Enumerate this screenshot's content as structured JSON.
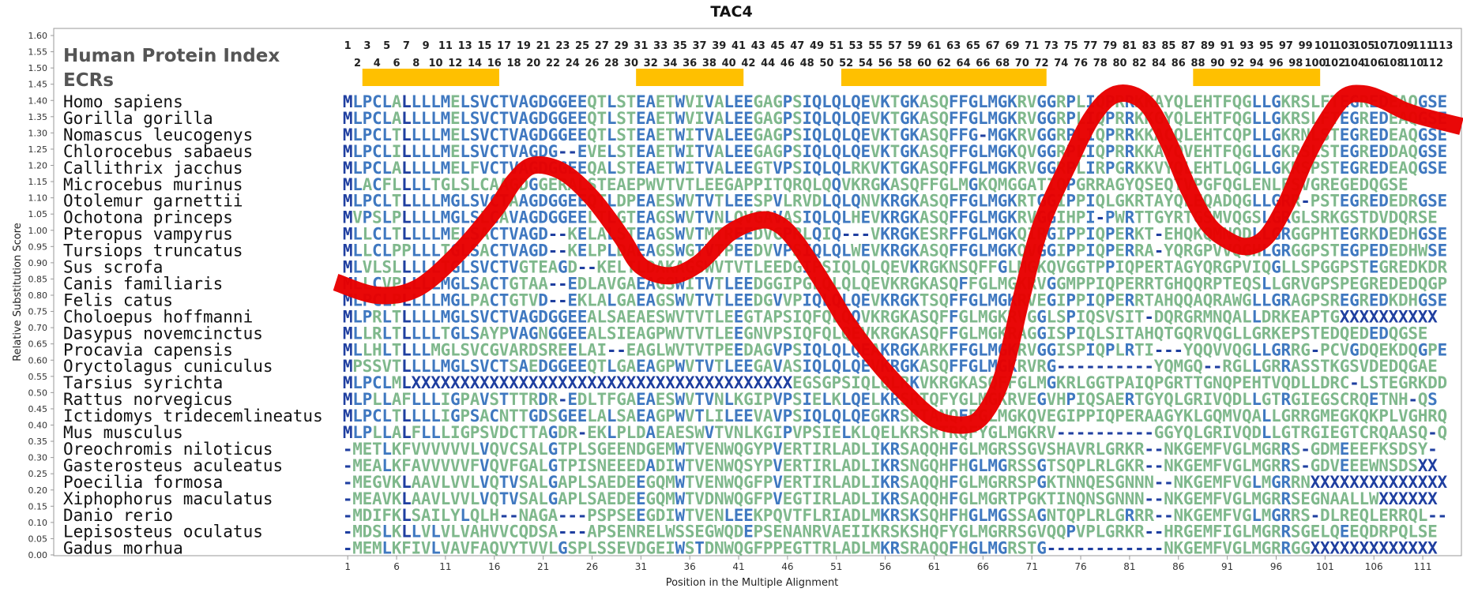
{
  "chart_data": {
    "type": "multiple-sequence-alignment",
    "title": "TAC4",
    "xlabel": "Position in the Multiple Alignment",
    "ylabel": "Relative Substitution Score",
    "ylim": [
      0,
      1.6
    ],
    "yticks": [
      "0.00",
      "0.05",
      "0.10",
      "0.15",
      "0.20",
      "0.25",
      "0.30",
      "0.35",
      "0.40",
      "0.45",
      "0.50",
      "0.55",
      "0.60",
      "0.65",
      "0.70",
      "0.75",
      "0.80",
      "0.85",
      "0.90",
      "0.95",
      "1.00",
      "1.05",
      "1.10",
      "1.15",
      "1.20",
      "1.25",
      "1.30",
      "1.35",
      "1.40",
      "1.45",
      "1.50",
      "1.55",
      "1.60"
    ],
    "xticks": [
      1,
      6,
      11,
      16,
      21,
      26,
      31,
      36,
      41,
      46,
      51,
      56,
      61,
      66,
      71,
      76,
      81,
      86,
      91,
      96,
      101,
      106,
      111
    ],
    "alignment_length": 113,
    "header_labels": {
      "human_index": "Human Protein Index",
      "ecrs": "ECRs"
    },
    "human_index_odd": [
      1,
      3,
      5,
      7,
      9,
      11,
      13,
      15,
      17,
      19,
      21,
      23,
      25,
      27,
      29,
      31,
      33,
      35,
      37,
      39,
      41,
      43,
      45,
      47,
      49,
      51,
      53,
      55,
      57,
      59,
      61,
      63,
      65,
      67,
      69,
      71,
      73,
      75,
      77,
      79,
      81,
      83,
      85,
      87,
      89,
      91,
      93,
      95,
      97,
      99,
      101,
      103,
      105,
      107,
      109,
      111,
      113
    ],
    "human_index_even": [
      2,
      4,
      6,
      8,
      10,
      12,
      14,
      16,
      18,
      20,
      22,
      24,
      26,
      28,
      30,
      32,
      34,
      36,
      38,
      40,
      42,
      44,
      46,
      48,
      50,
      52,
      54,
      56,
      58,
      60,
      62,
      64,
      66,
      68,
      70,
      72,
      74,
      76,
      78,
      80,
      82,
      84,
      86,
      88,
      90,
      92,
      94,
      96,
      98,
      100,
      102,
      104,
      106,
      108,
      110,
      112
    ],
    "ecrs": [
      [
        3,
        16
      ],
      [
        31,
        41
      ],
      [
        52,
        72
      ],
      [
        88,
        100
      ]
    ],
    "ecr_color": "#FFC000",
    "curve_color": "#E80000",
    "residue_colors": {
      "conserved": "#1F3FA0",
      "moderate": "#3F78C0",
      "variable": "#7FB88C"
    },
    "rows": [
      {
        "species": "Homo sapiens",
        "seq": "MLPCLALLLLMELSVCTVAGDGGEEQTLSTEAETWVIVALEEGAGPSIQLQLQEVKTGKASQFFGLMGKRVGGRPLIQPRRKKAYQLEHTFQGLLGKRSLFTEGREDEAQGSE"
      },
      {
        "species": "Gorilla gorilla",
        "seq": "MLPCLALLLLMELSVCTVAGDGGEEQTLSTEAETWVIVALEEGAGPSIQLQLQEVKTGKASQFFGLMGKRVGGRPLIQPRRKKGYQLEHTFQGLLGKRSLFTEGREDEAQGSE"
      },
      {
        "species": "Nomascus leucogenys",
        "seq": "MLPCLTLLLLMELSVCTVAGDGGEEQTLSTEAETWITVALEEGAGPSIQLQLQEVKTGKASQFFG-MGKRVGGRPLIQPRRKKACQLEHTCQPLLGKRNLSTEGREDEAQGSE"
      },
      {
        "species": "Chlorocebus sabaeus",
        "seq": "MLPCLILLLLMELSVCTVAGDG--EVELSTEAETWITVALEEGAGPSIQLQLQEVKTGKASQFFGLMGKQVGGRPLIQPRRKKAYQVEHTFQGLLGKRSLSTEGREDDAQGSE"
      },
      {
        "species": "Callithrix jacchus",
        "seq": "MLPCLALLLLMELFVCTVAGDGGEEQALSTEAETWITVALEEGTVPSIQLQLRKVKTGKASQFFGLMGKRVGGRPLIRPGRKKVYQLEHTLQGLLGKRSPSTEGREDEAQGSE"
      },
      {
        "species": "Microcebus murinus",
        "seq": "MLACFLLLLTGLSLCAAGDGGERALSTEAEPWVTVTLEEGAPPITQRQLQQVKRGKASQFFGLMGKQMGGATIQPGRRAGYQSEQTVPGFQGLENLFSVGREGEDQGSE"
      },
      {
        "species": "Otolemur garnettii",
        "seq": "MLPCLTLLLLMGLSVCTAAGDGGEEQTLDPEAESWVTVTLEESPVLRVDLQLQNVKRGKASQFFGLMGKRTGGIPPIQLGKRTAYQLEQADQGLLGRR-PSTEGREDEDRGSE"
      },
      {
        "species": "Ochotona princeps",
        "seq": "MVPSLPLLLLMGLSLCAVAGDGGEELTLGTEAGSWVTVNLQVGAVASIQLQLHEVKRGKASQFFGLMGKRVGGIHPI-PWRTTGYRTGSMVQGSLGRGLSRKGSTDVDQRSE"
      },
      {
        "species": "Pteropus vampyrus",
        "seq": "MLLCLTLLLLMELSACTVAGD--KELALSTEAGSWVTMTREEDVGPRLQIQ---VKRGKESRFFGLMGKQIRGIPPIQPERKT-EHQKQMNQDLLGRGGPHTEGRKDEDHGSE"
      },
      {
        "species": "Tursiops truncatus",
        "seq": "MLLCLPPLLLTGLSACTVAGD--KELPLDAEAGSWGTVTPEEDVVPSIQLQLWEVKRGKASQFFGLMGKQVGGIPPIQPERRA-YQRGPVVQGHLGRGGPSTEGPEDEDHWSE"
      },
      {
        "species": "Sus scrofa",
        "seq": "MLVLSLLLLLTGLSVCTVGTEAGD--KELTLDAKAGSWVTVTLEEDGIPSIQLQLQEVKRGKNSQFFGLMGKQVGGTPPIQPERTAGYQRGPVIQGLLSPGGPSTEGREDKDRGSE"
      },
      {
        "species": "Canis familiaris",
        "seq": "MLLCVPLLLLMGLSACTGTAA--EDLAVGAEAGSWITVTLEEDGGIPGLQLQLQEVKRGKASQFFGLMGKRVGGMPPIQPERRTGHQQRPTEQSLLGRVGPSPEGREDEDQGPE"
      },
      {
        "species": "Felis catus",
        "seq": "MLPCLPLLLLMGLPACTGTVD--EKLALGAEAGSWVTVTLEEDGVVPIQLQLQEVKRGKTSQFFGLMGKRVEGIPPIQPERRTAHQQAQRAWGLLGRAGPSREGREDKDHGSE"
      },
      {
        "species": "Choloepus hoffmanni",
        "seq": "MLPRLTLLLLMGLSVCTVAGDGGEEALSAEAESWVTVTLEEGTAPSIQFQLQQVKRGKASQFFGLMGKRVGGLSPIQSVSIT-DQRGRMNQALLDRKEAPTGXXXXXXXXXX"
      },
      {
        "species": "Dasypus novemcinctus",
        "seq": "MLLRLTLLLLTGLSAYPVAGNGGEEALSIEAGPWVTVTLEEGNVPSIQFQLQEVKRGKASQFFGLMGKRAGGISPIQLSITAHQTGQRVQGLLGRKEPSTEDQEDEDQGSE"
      },
      {
        "species": "Procavia capensis",
        "seq": "MLLHLTLLLMGLSVCGVARDSREELAI--EAGLWVTVTPEEDAGVPSIQLQLQEAKRGKARKFFGLMGKRVGGISPIQPLRTI---YQQVVQGLLGRRG-PCVGDQEKDQGPE"
      },
      {
        "species": "Oryctolagus cuniculus",
        "seq": "MPSSVTLLLLMGLSVCTSAEDGGEEQTLGAEAGPWVTVTLEEGAVASIQLQLQEVKRGKASQFFGLMGKRVRG----------YQMGQ--RGLLGRRASSTKGSVDEDQGAE"
      },
      {
        "species": "Tarsius syrichta",
        "seq": "MLPCLMLXXXXXXXXXXXXXXXXXXXXXXXXXXXXXXXXXXXXXXXEGSGPSIQLQLRKVKRGKASQFFGLMGKRLGGTPAIQPGRTTGNQPEHTVQDLLDRC-LSTEGRKDDDQGSE"
      },
      {
        "species": "Rattus norvegicus",
        "seq": "MLPLLAFLLLIGPAVSTTTRDR-EDLTFGAEAESWVTVNLKGIPVPSIELKLQELKRSRTQFYGLMGKRVEGVHPIQSAERTGYQLGRIVQDLLGTRGIEGSCRQETNH-QS"
      },
      {
        "species": "Ictidomys tridecemlineatus",
        "seq": "MLPCLTLLLLIGPSACNTTGDSGEELALSAEAGPWVTLILEEVAVPSIQLQLQEGKRSRTANQFFGLMGKQVEGIPPIQPERAAGYKLGQMVQALLGRRGMEGKQKPLVGHRQN"
      },
      {
        "species": "Mus musculus",
        "seq": "MLPLLALFLLLIGPSVDCTTAGDR-EKLPLDAEAESWVTVNLKGIPVPSIELKLQELKRSRTRQFYGLMGKRV----------GGYQLGRIVQDLLGTRGIEGTCRQAASQ-QR"
      },
      {
        "species": "Oreochromis niloticus",
        "seq": "-METLKFVVVVVVLVQVCSALGTPLSGEENDGEMWTVENWQGYPVERTIRLADLIKRSAQQHFGLMGRSSGVSHAVRLGRKR--NKGEMFVGLMGRRS-GDMEEEFKSDSY-"
      },
      {
        "species": "Gasterosteus aculeatus",
        "seq": "-MEALKFAVVVVVFVQVFGALGTPISNEEEDADIWTVENWQSYPVERTIRLADLIKRSNGQHFHGLMGRSSGTSQPLRLGKR--NKGEMFVGLMGRRS-GDVEEEWNSDSXX"
      },
      {
        "species": "Poecilia formosa",
        "seq": "-MEGVKLAAVLVVLVQTVSALGAPLSAEDEEGQMWTVENWQGFPVERTIRLADLIKRSAQQHFGLMGRRSPGKTNNQESGNNN--NKGEMFVGLMGRRNXXXXXXXXXXXXXX"
      },
      {
        "species": "Xiphophorus maculatus",
        "seq": "-MEAVKLAAVLVVLVQTVSALGAPLSAEDEEGQMWTVDNWQGFPVEGTIRLADLIKRSAQQHFGLMGRTPGKTINQNSGNNN--NKGEMFVGLMGRRSEGNAALLWXXXXXX"
      },
      {
        "species": "Danio rerio",
        "seq": "-MDIFKLSAILYLQLH--NAGA---PSPSEEGDIWTVENLEEKPQVTFLRIADLMKRSKSQHFHGLMGSSAGNTQPLRLGRRR--NKGEMFVGLMGRRS-DLREQLERRQL--"
      },
      {
        "species": "Lepisosteus oculatus",
        "seq": "-MDSLKLLVLVLVAHVVCQDSA---APSENRELWSSEGWQDEPSENANRVAEIIKRSKSHQFYGLMGRRSGVQQPVPLGRKR--HRGEMFIGLMGRRSGELQEEQDRPQLSE"
      },
      {
        "species": "Gadus morhua",
        "seq": "-MEMLKFIVLVAVFAQVYTVVLGSPLSSEVDGEIWSTDNWQGFPPEGTTRLADLMKRSRAQQFHGLMGRSTG------------NKGEMFVGLMGRRGGXXXXXXXXXXXXX"
      }
    ],
    "curve": {
      "x": [
        1,
        4,
        8,
        12,
        16,
        18,
        20,
        23,
        26,
        29,
        31,
        34,
        37,
        40,
        43,
        45,
        47,
        50,
        52,
        55,
        58,
        61,
        64,
        66,
        68,
        70,
        72,
        75,
        77,
        79,
        81,
        83,
        85,
        87,
        89,
        91,
        93,
        95,
        97,
        99,
        101,
        103,
        105,
        107,
        109,
        111,
        113
      ],
      "y": [
        0.84,
        0.8,
        0.82,
        0.92,
        1.06,
        1.15,
        1.2,
        1.18,
        1.1,
        0.98,
        0.89,
        0.86,
        0.9,
        0.99,
        1.03,
        1.02,
        0.96,
        0.82,
        0.72,
        0.6,
        0.5,
        0.42,
        0.4,
        0.43,
        0.55,
        0.8,
        1.02,
        1.22,
        1.34,
        1.41,
        1.42,
        1.38,
        1.27,
        1.13,
        1.02,
        0.97,
        0.95,
        0.98,
        1.08,
        1.22,
        1.33,
        1.41,
        1.42,
        1.4,
        1.37,
        1.35,
        1.32
      ]
    }
  }
}
